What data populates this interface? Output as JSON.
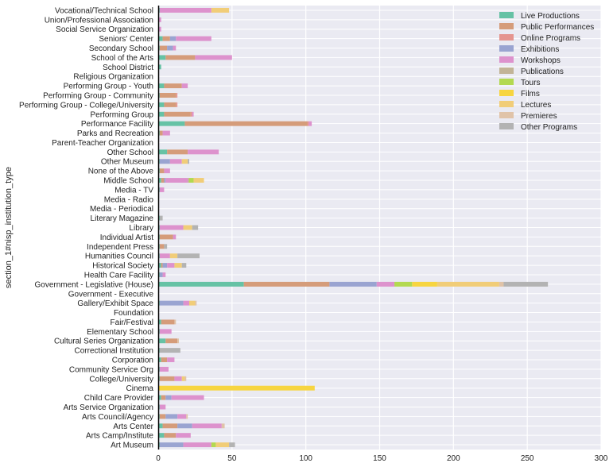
{
  "chart_data": {
    "type": "bar",
    "orientation": "horizontal",
    "stacked": true,
    "ylabel": "section_1#nisp_institution_type",
    "xlabel": "",
    "xlim": [
      0,
      300
    ],
    "xticks": [
      0,
      50,
      100,
      150,
      200,
      250,
      300
    ],
    "grid": true,
    "background": "#eaeaf2",
    "legend_position": "top-right",
    "categories": [
      "Vocational/Technical School",
      "Union/Professional Association",
      "Social Service Organization",
      "Seniors' Center",
      "Secondary School",
      "School of the Arts",
      "School District",
      "Religious Organization",
      "Performing Group - Youth",
      "Performing Group - Community",
      "Performing Group - College/University",
      "Performing Group",
      "Performance Facility",
      "Parks and Recreation",
      "Parent-Teacher Organization",
      "Other School",
      "Other Museum",
      "None of the Above",
      "Middle School",
      "Media - TV",
      "Media - Radio",
      "Media - Periodical",
      "Literary Magazine",
      "Library",
      "Individual Artist",
      "Independent Press",
      "Humanities Council",
      "Historical Society",
      "Health Care Facility",
      "Government - Legislative (House)",
      "Government - Executive",
      "Gallery/Exhibit Space",
      "Foundation",
      "Fair/Festival",
      "Elementary School",
      "Cultural Series Organization",
      "Correctional Institution",
      "Corporation",
      "Community Service Org",
      "College/University",
      "Cinema",
      "Child Care Provider",
      "Arts Service Organization",
      "Arts Council/Agency",
      "Arts Center",
      "Arts Camp/Institute",
      "Art Museum"
    ],
    "series": [
      {
        "name": "Live Productions",
        "color": "#66c2a5",
        "values": [
          1,
          0,
          0,
          3,
          1,
          5,
          2,
          0,
          4,
          1,
          4,
          4,
          18,
          1,
          0,
          6,
          1,
          1,
          2,
          1,
          0,
          0,
          1,
          1,
          1,
          1,
          1,
          2,
          1,
          58,
          0,
          1,
          0,
          2,
          1,
          5,
          1,
          2,
          1,
          1,
          0,
          2,
          1,
          1,
          3,
          4,
          1
        ]
      },
      {
        "name": "Public Performances",
        "color": "#d59c7a",
        "values": [
          0,
          0,
          0,
          5,
          5,
          20,
          0,
          0,
          12,
          11,
          8,
          18,
          83,
          2,
          0,
          14,
          0,
          3,
          2,
          0,
          0,
          0,
          0,
          0,
          9,
          3,
          0,
          1,
          0,
          58,
          0,
          0,
          0,
          9,
          0,
          8,
          0,
          4,
          0,
          10,
          0,
          3,
          0,
          4,
          10,
          8,
          0
        ]
      },
      {
        "name": "Online Programs",
        "color": "#e5958f",
        "values": [
          0,
          0,
          0,
          0,
          0,
          0,
          0,
          0,
          0,
          1,
          1,
          1,
          1,
          0,
          0,
          0,
          0,
          0,
          0,
          0,
          0,
          0,
          0,
          0,
          0,
          0,
          0,
          0,
          0,
          0,
          0,
          0,
          0,
          0,
          0,
          0,
          0,
          0,
          0,
          0,
          0,
          0,
          0,
          0,
          0,
          0,
          0
        ]
      },
      {
        "name": "Exhibitions",
        "color": "#9aa4d1",
        "values": [
          0,
          0,
          0,
          4,
          4,
          0,
          0,
          0,
          0,
          0,
          0,
          0,
          0,
          0,
          0,
          0,
          7,
          0,
          1,
          0,
          0,
          0,
          0,
          0,
          0,
          0,
          0,
          3,
          2,
          32,
          0,
          16,
          0,
          0,
          0,
          0,
          0,
          0,
          0,
          0,
          0,
          4,
          0,
          8,
          10,
          0,
          16
        ]
      },
      {
        "name": "Workshops",
        "color": "#dd92cd",
        "values": [
          35,
          2,
          2,
          24,
          2,
          25,
          0,
          0,
          4,
          0,
          0,
          1,
          2,
          5,
          0,
          21,
          8,
          4,
          15,
          3,
          0,
          0,
          0,
          16,
          2,
          0,
          7,
          5,
          2,
          12,
          0,
          4,
          0,
          0,
          8,
          0,
          0,
          5,
          6,
          5,
          0,
          22,
          4,
          6,
          20,
          10,
          19
        ]
      },
      {
        "name": "Publications",
        "color": "#c2b497",
        "values": [
          0,
          0,
          0,
          0,
          0,
          0,
          0,
          0,
          0,
          0,
          0,
          0,
          0,
          0,
          0,
          0,
          0,
          0,
          1,
          0,
          0,
          0,
          0,
          0,
          0,
          0,
          0,
          0,
          0,
          0,
          0,
          0,
          0,
          0,
          0,
          0,
          0,
          0,
          0,
          0,
          0,
          0,
          0,
          0,
          0,
          0,
          0
        ]
      },
      {
        "name": "Tours",
        "color": "#b3d950",
        "values": [
          0,
          0,
          0,
          0,
          0,
          0,
          0,
          0,
          0,
          0,
          0,
          0,
          0,
          0,
          0,
          0,
          0,
          0,
          3,
          0,
          0,
          0,
          0,
          0,
          0,
          0,
          0,
          0,
          0,
          12,
          0,
          0,
          0,
          0,
          0,
          0,
          0,
          0,
          0,
          0,
          0,
          0,
          0,
          0,
          0,
          0,
          3
        ]
      },
      {
        "name": "Films",
        "color": "#f7d540",
        "values": [
          0,
          0,
          0,
          0,
          0,
          0,
          0,
          0,
          0,
          0,
          0,
          0,
          0,
          0,
          0,
          0,
          0,
          0,
          0,
          0,
          0,
          0,
          0,
          0,
          0,
          0,
          0,
          0,
          0,
          17,
          0,
          0,
          0,
          0,
          0,
          0,
          0,
          0,
          0,
          0,
          106,
          0,
          0,
          0,
          0,
          0,
          0
        ]
      },
      {
        "name": "Lectures",
        "color": "#f1cd78",
        "values": [
          12,
          0,
          0,
          0,
          0,
          0,
          0,
          0,
          0,
          0,
          0,
          0,
          0,
          0,
          0,
          0,
          4,
          0,
          7,
          0,
          0,
          0,
          0,
          6,
          0,
          0,
          5,
          5,
          0,
          42,
          0,
          4,
          0,
          0,
          0,
          0,
          0,
          0,
          0,
          2,
          0,
          0,
          0,
          0,
          0,
          0,
          9
        ]
      },
      {
        "name": "Premieres",
        "color": "#e0c3a8",
        "values": [
          0,
          0,
          0,
          0,
          0,
          0,
          0,
          0,
          0,
          0,
          0,
          0,
          0,
          0,
          0,
          0,
          0,
          0,
          0,
          0,
          0,
          0,
          0,
          0,
          0,
          0,
          0,
          0,
          0,
          3,
          0,
          1,
          0,
          1,
          0,
          1,
          0,
          0,
          0,
          1,
          0,
          0,
          0,
          1,
          2,
          0,
          0
        ]
      },
      {
        "name": "Other Programs",
        "color": "#b3b3b3",
        "values": [
          0,
          0,
          0,
          0,
          0,
          0,
          0,
          0,
          0,
          0,
          0,
          0,
          0,
          0,
          0,
          0,
          1,
          0,
          0,
          0,
          0,
          0,
          2,
          4,
          0,
          2,
          15,
          3,
          0,
          30,
          0,
          0,
          0,
          0,
          0,
          0,
          14,
          0,
          0,
          0,
          0,
          0,
          0,
          0,
          0,
          0,
          4
        ]
      }
    ]
  }
}
